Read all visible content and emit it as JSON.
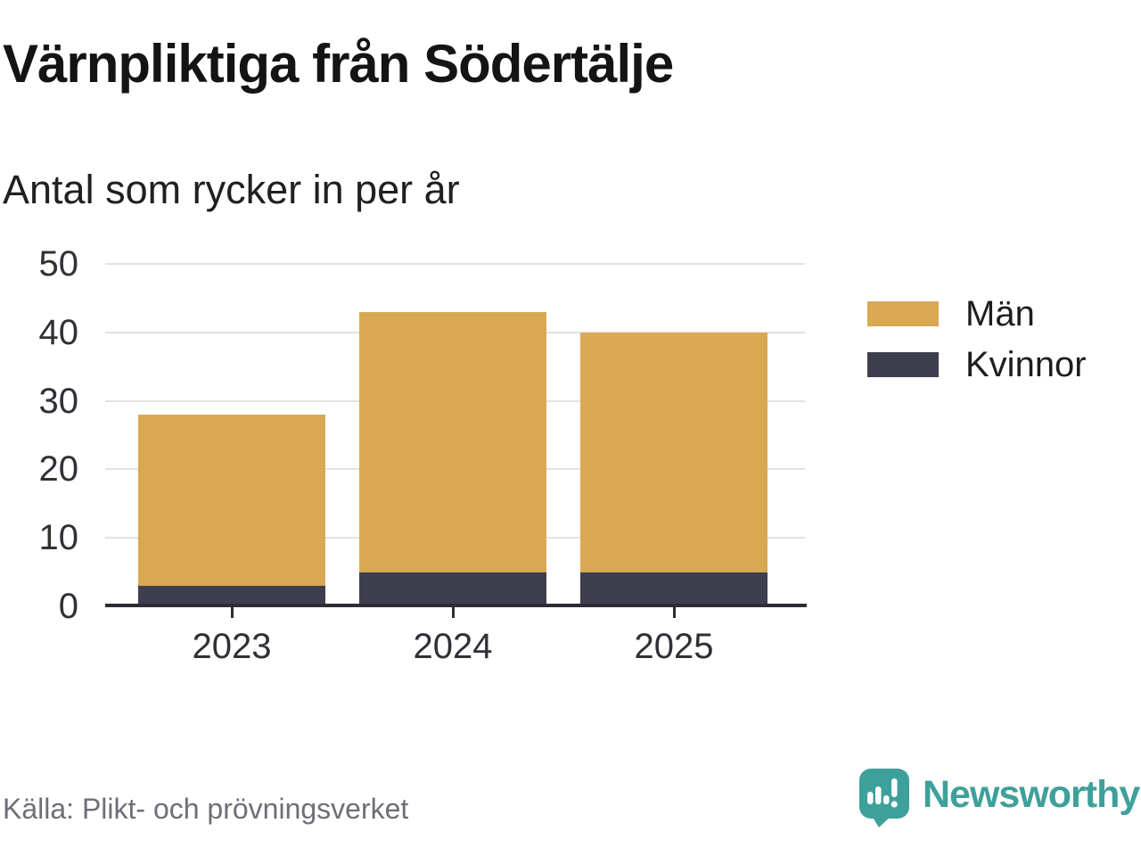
{
  "header": {
    "title": "Värnpliktiga från Södertälje",
    "subtitle": "Antal som rycker in per år"
  },
  "chart_data": {
    "type": "bar",
    "stacked": true,
    "title": "Värnpliktiga från Södertälje",
    "subtitle": "Antal som rycker in per år",
    "categories": [
      "2023",
      "2024",
      "2025"
    ],
    "series": [
      {
        "name": "Män",
        "color": "#d9a853",
        "values": [
          25,
          38,
          35
        ]
      },
      {
        "name": "Kvinnor",
        "color": "#3e3e4e",
        "values": [
          3,
          5,
          5
        ]
      }
    ],
    "stack_order_bottom_to_top": [
      "Kvinnor",
      "Män"
    ],
    "totals": [
      28,
      43,
      40
    ],
    "ylim": [
      0,
      50
    ],
    "yticks": [
      0,
      10,
      20,
      30,
      40,
      50
    ],
    "grid": "horizontal",
    "legend_position": "right"
  },
  "footer": {
    "source": "Källa: Plikt- och prövningsverket",
    "brand": "Newsworthy"
  },
  "logo": {
    "icon": "speech-bubble-bar-chart-icon",
    "color": "#3ea09b"
  }
}
